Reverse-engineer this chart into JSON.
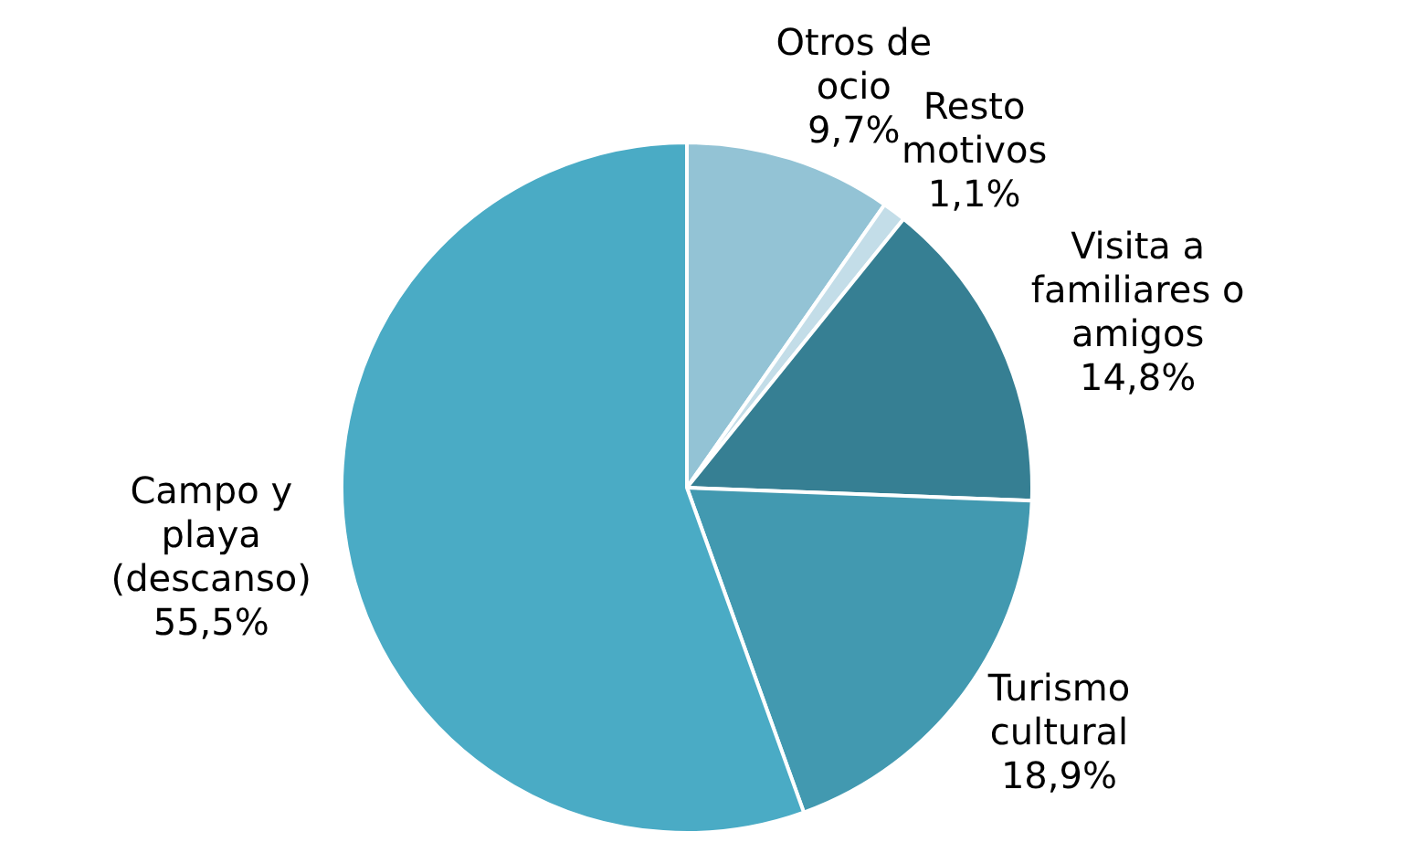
{
  "chart_data": {
    "type": "pie",
    "categories": [
      "Otros de ocio",
      "Resto motivos",
      "Visita a familiares o amigos",
      "Turismo cultural",
      "Campo y playa (descanso)"
    ],
    "values": [
      9.7,
      1.1,
      14.8,
      18.9,
      55.5
    ],
    "value_labels": [
      "9,7%",
      "1,1%",
      "14,8%",
      "18,9%",
      "55,5%"
    ],
    "colors": [
      "#93c3d5",
      "#c3dde8",
      "#367f93",
      "#4299b0",
      "#4aabc5"
    ],
    "legend": false
  }
}
